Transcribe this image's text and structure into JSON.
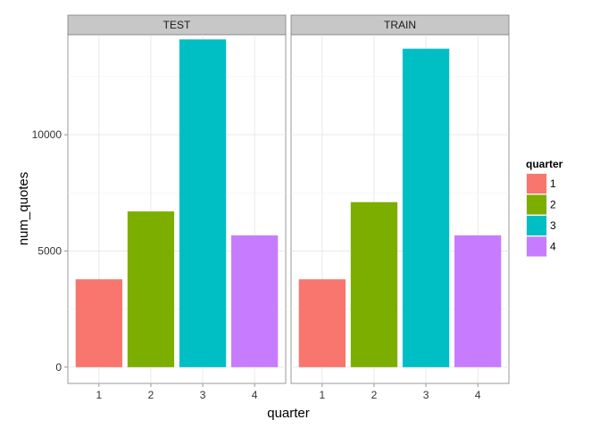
{
  "chart_data": {
    "type": "bar",
    "xlabel": "quarter",
    "ylabel": "num_quotes",
    "ylim": [
      -700,
      14300
    ],
    "yticks": [
      0,
      5000,
      10000
    ],
    "categories": [
      "1",
      "2",
      "3",
      "4"
    ],
    "facets": [
      {
        "label": "TEST",
        "values": [
          3780,
          6700,
          14100,
          5670
        ]
      },
      {
        "label": "TRAIN",
        "values": [
          3780,
          7100,
          13700,
          5670
        ]
      }
    ],
    "legend": {
      "title": "quarter",
      "position": "right",
      "entries": [
        {
          "label": "1",
          "color": "#F8766D"
        },
        {
          "label": "2",
          "color": "#7CAE00"
        },
        {
          "label": "3",
          "color": "#00BFC4"
        },
        {
          "label": "4",
          "color": "#C77CFF"
        }
      ]
    },
    "grid": true,
    "theme": "bw"
  }
}
